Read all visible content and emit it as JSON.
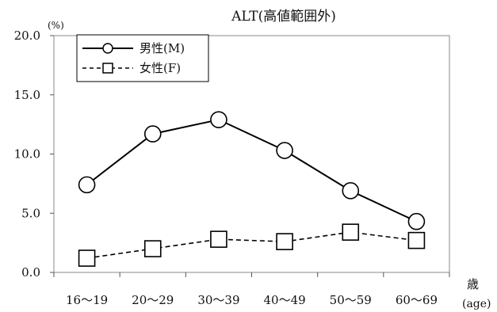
{
  "chart_data": {
    "type": "line",
    "title": "ALT(高値範囲外)",
    "y_unit": "(%)",
    "x_unit_top": "歳",
    "x_unit_bottom": "(age)",
    "categories": [
      "16～19",
      "20～29",
      "30～39",
      "40～49",
      "50～59",
      "60～69"
    ],
    "ylim": [
      0,
      20
    ],
    "yticks": [
      "0.0",
      "5.0",
      "10.0",
      "15.0",
      "20.0"
    ],
    "grid": false,
    "legend_position": "top-left",
    "series": [
      {
        "name": "男性(M)",
        "values": [
          7.4,
          11.7,
          12.9,
          10.3,
          6.9,
          4.3
        ],
        "marker": "circle",
        "line": "solid",
        "color": "#000000"
      },
      {
        "name": "女性(F)",
        "values": [
          1.2,
          2.0,
          2.8,
          2.6,
          3.4,
          2.7
        ],
        "marker": "square",
        "line": "dashed",
        "color": "#000000"
      }
    ]
  }
}
